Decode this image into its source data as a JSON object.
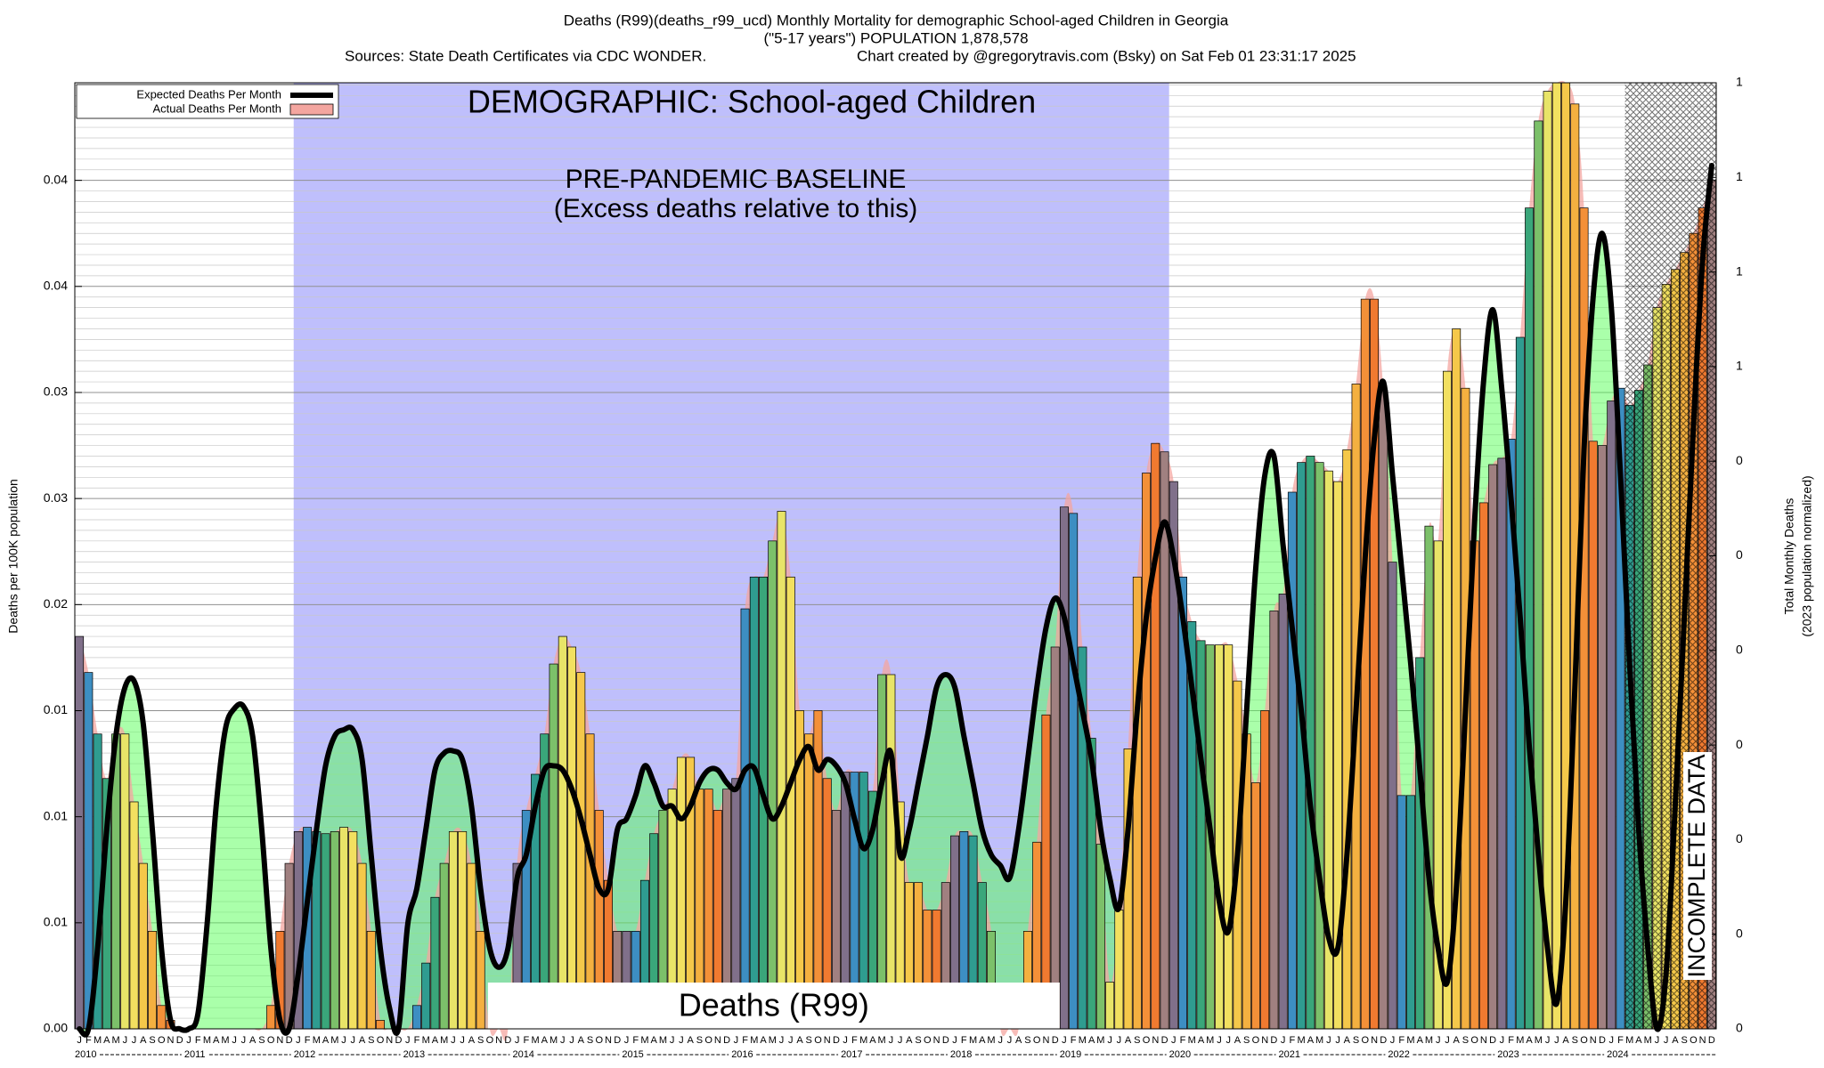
{
  "chart_data": {
    "type": "bar",
    "title": "Deaths (R99)(deaths_r99_ucd) Monthly Mortality for demographic School-aged Children in Georgia",
    "subtitle": "(\"5-17 years\") POPULATION 1,878,578",
    "source": "Sources: State Death Certificates via CDC WONDER.",
    "credit": "Chart created by @gregorytravis.com (Bsky) on Sat Feb 01 23:31:17 2025",
    "annotations": {
      "demographic": "DEMOGRAPHIC: School-aged Children",
      "baseline": "PRE-PANDEMIC BASELINE",
      "baseline_note": "(Excess deaths relative to this)",
      "cause": "Deaths (R99)",
      "incomplete": "INCOMPLETE DATA"
    },
    "ylabel": "Deaths per 100K population",
    "y2label": "Total Monthly Deaths",
    "y2label_note": "(2023 population normalized)",
    "categories": [
      "J",
      "F",
      "M",
      "A",
      "M",
      "J",
      "J",
      "A",
      "S",
      "O",
      "N",
      "D",
      "J",
      "F",
      "M",
      "A",
      "M",
      "J",
      "J",
      "A",
      "S",
      "O",
      "N",
      "D",
      "J",
      "F",
      "M",
      "A",
      "M",
      "J",
      "J",
      "A",
      "S",
      "O",
      "N",
      "D",
      "J",
      "F",
      "M",
      "A",
      "M",
      "J",
      "J",
      "A",
      "S",
      "O",
      "N",
      "D",
      "J",
      "F",
      "M",
      "A",
      "M",
      "J",
      "J",
      "A",
      "S",
      "O",
      "N",
      "D",
      "J",
      "F",
      "M",
      "A",
      "M",
      "J",
      "J",
      "A",
      "S",
      "O",
      "N",
      "D",
      "J",
      "F",
      "M",
      "A",
      "M",
      "J",
      "J",
      "A",
      "S",
      "O",
      "N",
      "D",
      "J",
      "F",
      "M",
      "A",
      "M",
      "J",
      "J",
      "A",
      "S",
      "O",
      "N",
      "D",
      "J",
      "F",
      "M",
      "A",
      "M",
      "J",
      "J",
      "A",
      "S",
      "O",
      "N",
      "D",
      "J",
      "F",
      "M",
      "A",
      "M",
      "J",
      "J",
      "A",
      "S",
      "O",
      "N",
      "D",
      "J",
      "F",
      "M",
      "A",
      "M",
      "J",
      "J",
      "A",
      "S",
      "O",
      "N",
      "D",
      "J",
      "F",
      "M",
      "A",
      "M",
      "J",
      "J",
      "A",
      "S",
      "O",
      "N",
      "D",
      "J",
      "F",
      "M",
      "A",
      "M",
      "J",
      "J",
      "A",
      "S",
      "O",
      "N",
      "D",
      "J",
      "F",
      "M",
      "A",
      "M",
      "J",
      "J",
      "A",
      "S",
      "O",
      "N",
      "D",
      "J",
      "F",
      "M",
      "A",
      "M",
      "J",
      "J",
      "A",
      "S",
      "O",
      "N",
      "D"
    ],
    "years": [
      "2010",
      "2011",
      "2012",
      "2013",
      "2014",
      "2015",
      "2016",
      "2017",
      "2018",
      "2019",
      "2020",
      "2021",
      "2022",
      "2023",
      "2024"
    ],
    "month_colors": [
      "#80708a",
      "#3d8ec2",
      "#2f9c90",
      "#3aa67a",
      "#7cc06a",
      "#e8e468",
      "#f2e060",
      "#f5c84a",
      "#f4b040",
      "#f39038",
      "#f07a30",
      "#a08080"
    ],
    "series": [
      {
        "name": "Expected Deaths Per Month",
        "type": "line",
        "color": "#000000",
        "values": [
          0,
          0,
          0.0038,
          0.0094,
          0.0138,
          0.0161,
          0.0164,
          0.0144,
          0.0094,
          0.0038,
          0.0004,
          0,
          0,
          0.0007,
          0.0049,
          0.0105,
          0.0141,
          0.0151,
          0.0152,
          0.0138,
          0.0094,
          0.0038,
          0.0004,
          0,
          0.0026,
          0.006,
          0.0094,
          0.0124,
          0.0138,
          0.0141,
          0.0141,
          0.0127,
          0.0082,
          0.0038,
          0.001,
          0,
          0.0049,
          0.0066,
          0.0094,
          0.0122,
          0.013,
          0.0131,
          0.0127,
          0.0105,
          0.0066,
          0.0038,
          0.0029,
          0.0038,
          0.0071,
          0.0082,
          0.0105,
          0.0122,
          0.0124,
          0.0122,
          0.0113,
          0.0099,
          0.0082,
          0.0066,
          0.0066,
          0.0094,
          0.0099,
          0.011,
          0.0124,
          0.0116,
          0.0105,
          0.0105,
          0.0099,
          0.0105,
          0.0116,
          0.0122,
          0.0122,
          0.0116,
          0.0113,
          0.0122,
          0.0123,
          0.011,
          0.0099,
          0.0105,
          0.0116,
          0.0127,
          0.0133,
          0.0122,
          0.0127,
          0.0124,
          0.0116,
          0.0099,
          0.0085,
          0.0094,
          0.0116,
          0.013,
          0.0082,
          0.0094,
          0.0116,
          0.0138,
          0.0161,
          0.0167,
          0.0161,
          0.0138,
          0.0116,
          0.0094,
          0.0082,
          0.0077,
          0.0071,
          0.0094,
          0.0127,
          0.0161,
          0.0189,
          0.0203,
          0.0194,
          0.0172,
          0.015,
          0.0127,
          0.0094,
          0.0071,
          0.0057,
          0.0094,
          0.015,
          0.0194,
          0.0222,
          0.0239,
          0.0222,
          0.0194,
          0.0161,
          0.0127,
          0.0094,
          0.006,
          0.0046,
          0.0082,
          0.015,
          0.0217,
          0.0261,
          0.027,
          0.0228,
          0.0189,
          0.015,
          0.0105,
          0.0071,
          0.0043,
          0.0038,
          0.0082,
          0.015,
          0.0222,
          0.0278,
          0.0305,
          0.0261,
          0.0217,
          0.0172,
          0.0122,
          0.0071,
          0.0038,
          0.0022,
          0.0066,
          0.015,
          0.0239,
          0.0306,
          0.0339,
          0.0301,
          0.025,
          0.0194,
          0.0133,
          0.0082,
          0.0038,
          0.0012,
          0.006,
          0.0161,
          0.0273,
          0.0345,
          0.0375,
          0.034,
          0.0261,
          0.0172,
          0.0094,
          0.0038,
          0,
          0.0026,
          0.0105,
          0.0194,
          0.0284,
          0.0362,
          0.0407
        ]
      },
      {
        "name": "Actual Deaths Per Month",
        "type": "bar",
        "color": "#f4a6a0",
        "values": [
          0.0185,
          0.0168,
          0.0139,
          0.0118,
          0.0139,
          0.0139,
          0.0107,
          0.0078,
          0.0046,
          0.0011,
          0.0004,
          0,
          0,
          0,
          0,
          0,
          0,
          0,
          0,
          0,
          0,
          0.0011,
          0.0046,
          0.0078,
          0.0093,
          0.0095,
          0.0093,
          0.0092,
          0.0093,
          0.0095,
          0.0093,
          0.0078,
          0.0046,
          0.0004,
          0,
          0,
          0,
          0.0011,
          0.0031,
          0.0062,
          0.0078,
          0.0093,
          0.0093,
          0.0078,
          0.0046,
          0,
          0,
          0,
          0.0078,
          0.0103,
          0.012,
          0.0139,
          0.0172,
          0.0185,
          0.018,
          0.0168,
          0.0139,
          0.0103,
          0.007,
          0.0046,
          0.0046,
          0.0046,
          0.007,
          0.0092,
          0.0103,
          0.0113,
          0.0128,
          0.0128,
          0.0113,
          0.0113,
          0.0103,
          0.0113,
          0.0118,
          0.0198,
          0.0213,
          0.0213,
          0.023,
          0.0244,
          0.0213,
          0.015,
          0.0139,
          0.015,
          0.0118,
          0.0103,
          0.0121,
          0.0121,
          0.0121,
          0.0112,
          0.0167,
          0.0167,
          0.0107,
          0.0069,
          0.0069,
          0.0056,
          0.0056,
          0.0069,
          0.0091,
          0.0093,
          0.0091,
          0.0069,
          0.0046,
          0,
          0,
          0,
          0.0046,
          0.0088,
          0.0148,
          0.018,
          0.0246,
          0.0243,
          0.018,
          0.0137,
          0.0087,
          0.0022,
          0.0056,
          0.0132,
          0.0213,
          0.0262,
          0.0276,
          0.0272,
          0.0258,
          0.0213,
          0.0192,
          0.0183,
          0.0181,
          0.0181,
          0.0181,
          0.0164,
          0.0139,
          0.0116,
          0.015,
          0.0197,
          0.0205,
          0.0253,
          0.0267,
          0.027,
          0.0267,
          0.0263,
          0.0258,
          0.0273,
          0.0304,
          0.0344,
          0.0344,
          0.0301,
          0.022,
          0.011,
          0.011,
          0.0175,
          0.0237,
          0.023,
          0.031,
          0.033,
          0.0302,
          0.023,
          0.0248,
          0.0266,
          0.0269,
          0.0278,
          0.0326,
          0.0387,
          0.0428,
          0.0442,
          0.0446,
          0.0446,
          0.0436,
          0.0387,
          0.0277,
          0.0275,
          0.0296,
          0.0302,
          0.0294,
          0.0301,
          0.0313,
          0.034,
          0.0351,
          0.0358,
          0.0366,
          0.0375,
          0.0387,
          0.04
        ]
      }
    ],
    "ylim": [
      0,
      0.0446
    ],
    "yticks": [
      {
        "value": 0,
        "label": "0.00"
      },
      {
        "value": 0.005,
        "label": "0.01"
      },
      0.01,
      {
        "value": 0.015,
        "label": "0.01"
      },
      0.02,
      {
        "value": 0.025,
        "label": "0.03"
      },
      0.03,
      {
        "value": 0.035,
        "label": "0.04"
      },
      0.04
    ],
    "y2lim": [
      0,
      0.8
    ],
    "y2ticks": [
      0,
      {
        "value": 0.08,
        "label": "0"
      },
      {
        "value": 0.16,
        "label": "0"
      },
      {
        "value": 0.24,
        "label": "0"
      },
      {
        "value": 0.32,
        "label": "0"
      },
      {
        "value": 0.4,
        "label": "0"
      },
      {
        "value": 0.48,
        "label": "0"
      },
      {
        "value": 0.56,
        "label": "1"
      },
      {
        "value": 0.64,
        "label": "1"
      },
      {
        "value": 0.72,
        "label": "1"
      },
      {
        "value": 0.8,
        "label": "1"
      }
    ],
    "grid": true,
    "legend": "upper left"
  }
}
